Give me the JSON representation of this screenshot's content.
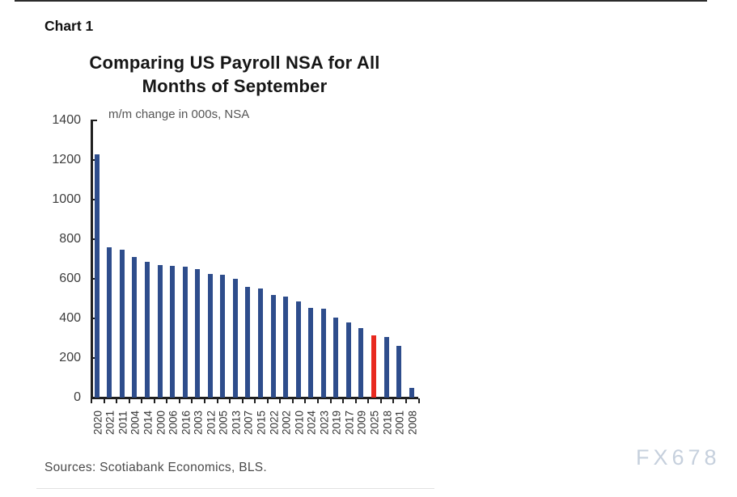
{
  "page": {
    "chart_label": "Chart 1",
    "sources": "Sources: Scotiabank Economics, BLS.",
    "watermark": "FX678"
  },
  "colors": {
    "bar": "#2e4d8c",
    "highlight": "#e8291f",
    "axis": "#1f1f1f",
    "watermark": "#c6d0dd"
  },
  "chart_data": {
    "type": "bar",
    "title": "Comparing US Payroll NSA for All Months of September",
    "subtitle": "m/m change in 000s, NSA",
    "categories": [
      "2020",
      "2021",
      "2011",
      "2004",
      "2014",
      "2000",
      "2006",
      "2016",
      "2003",
      "2012",
      "2005",
      "2013",
      "2007",
      "2015",
      "2022",
      "2002",
      "2010",
      "2024",
      "2023",
      "2019",
      "2017",
      "2009",
      "2025",
      "2018",
      "2001",
      "2008"
    ],
    "values": [
      1230,
      760,
      745,
      710,
      685,
      670,
      665,
      660,
      650,
      625,
      620,
      600,
      560,
      550,
      520,
      510,
      485,
      455,
      450,
      405,
      380,
      350,
      313,
      305,
      260,
      50
    ],
    "highlight_category": "2025",
    "xlabel": "",
    "ylabel": "",
    "ylim": [
      0,
      1400
    ],
    "yticks": [
      1400,
      1200,
      1000,
      800,
      600,
      400,
      200,
      0
    ],
    "grid": false,
    "legend": "none"
  }
}
